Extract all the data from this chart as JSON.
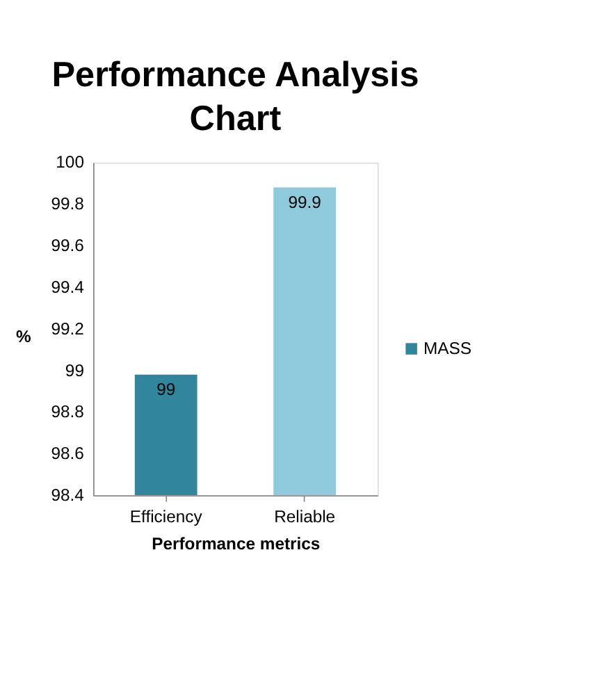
{
  "chart_data": {
    "type": "bar",
    "title": "Performance Analysis Chart",
    "xlabel": "Performance metrics",
    "ylabel": "%",
    "categories": [
      "Efficiency",
      "Reliable"
    ],
    "series": [
      {
        "name": "MASS",
        "color": "#31859c",
        "colors": [
          "#31859c",
          "#8fc9dc"
        ],
        "values": [
          98.98,
          99.88
        ],
        "value_labels": [
          "99",
          "99.9"
        ]
      }
    ],
    "ylim": [
      98.4,
      100
    ],
    "yticks": [
      98.4,
      98.6,
      98.8,
      99,
      99.2,
      99.4,
      99.6,
      99.8,
      100
    ],
    "grid": false,
    "legend": "right"
  }
}
